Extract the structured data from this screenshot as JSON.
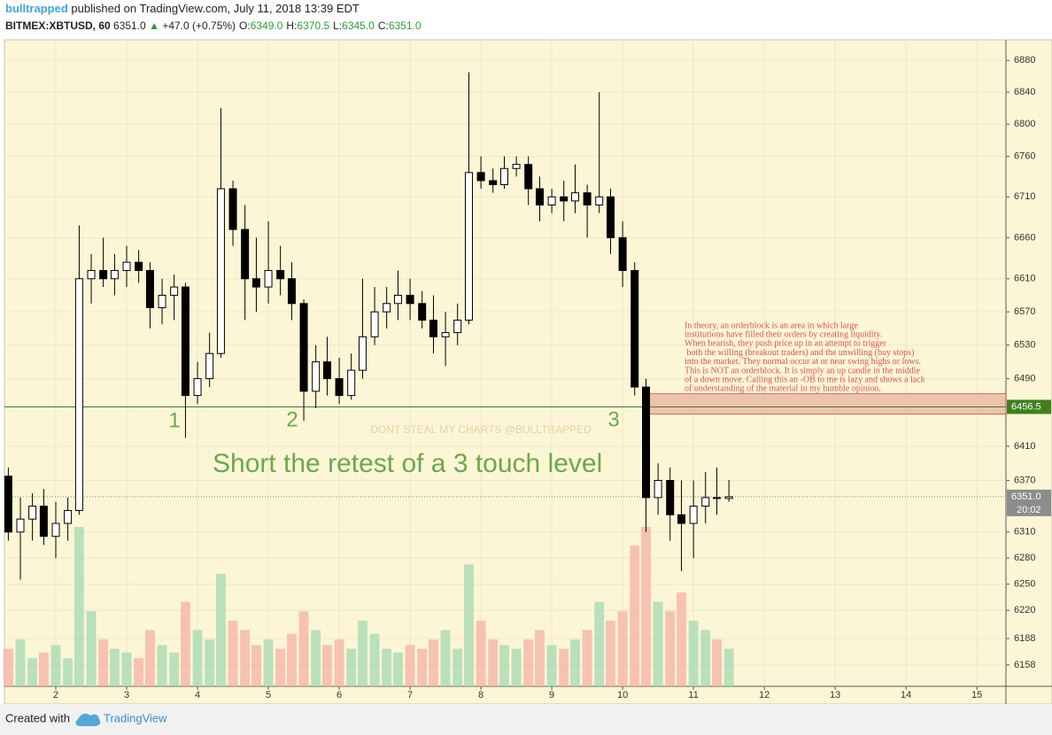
{
  "header": {
    "author": "bulltrapped",
    "published": "published on TradingView.com, July 11, 2018 13:39 EDT",
    "symbol": "BITMEX:XBTUSD, 60",
    "last": "6351.0",
    "arrow": "▲",
    "change": "+47.0 (+0.75%)",
    "ohlc": [
      {
        "label": "O:",
        "value": "6349.0"
      },
      {
        "label": "H:",
        "value": "6370.5"
      },
      {
        "label": "L:",
        "value": "6345.0"
      },
      {
        "label": "C:",
        "value": "6351.0"
      }
    ]
  },
  "chart_data": {
    "type": "candlestick",
    "log_scale": true,
    "grid": true,
    "up_color": "#ffffff",
    "down_color": "#000000",
    "volume_up_color": "#a9dbb5",
    "volume_down_color": "#f5b5a8",
    "xlim": [
      1.275,
      15.41
    ],
    "xticks": [
      2,
      3,
      4,
      5,
      6,
      7,
      8,
      9,
      10,
      11,
      12,
      13,
      14,
      15
    ],
    "ylim": [
      6134,
      6906
    ],
    "yticks": [
      6880,
      6840,
      6800,
      6760,
      6710,
      6660,
      6610,
      6570,
      6530,
      6490,
      6410,
      6370,
      6310,
      6280,
      6250,
      6220,
      6188,
      6158
    ],
    "x": [
      1.33,
      1.5,
      1.67,
      1.83,
      2,
      2.17,
      2.33,
      2.5,
      2.67,
      2.83,
      3,
      3.17,
      3.33,
      3.5,
      3.67,
      3.83,
      4,
      4.17,
      4.33,
      4.5,
      4.67,
      4.83,
      5,
      5.17,
      5.33,
      5.5,
      5.67,
      5.83,
      6,
      6.17,
      6.33,
      6.5,
      6.67,
      6.83,
      7,
      7.17,
      7.33,
      7.5,
      7.67,
      7.83,
      8,
      8.17,
      8.33,
      8.5,
      8.67,
      8.83,
      9,
      9.17,
      9.33,
      9.5,
      9.67,
      9.83,
      10,
      10.17,
      10.33,
      10.5,
      10.67,
      10.83,
      11,
      11.17,
      11.33,
      11.5
    ],
    "open": [
      6375,
      6310,
      6325,
      6340,
      6305,
      6320,
      6335,
      6610,
      6620,
      6610,
      6620,
      6630,
      6620,
      6575,
      6590,
      6600,
      6470,
      6490,
      6520,
      6720,
      6670,
      6610,
      6600,
      6620,
      6610,
      6580,
      6475,
      6510,
      6490,
      6470,
      6500,
      6540,
      6570,
      6580,
      6590,
      6580,
      6560,
      6540,
      6545,
      6560,
      6740,
      6730,
      6725,
      6745,
      6750,
      6720,
      6700,
      6710,
      6705,
      6715,
      6700,
      6710,
      6660,
      6620,
      6480,
      6350,
      6370,
      6330,
      6320,
      6340,
      6350,
      6349
    ],
    "high": [
      6385,
      6350,
      6355,
      6360,
      6345,
      6350,
      6675,
      6640,
      6660,
      6640,
      6650,
      6645,
      6630,
      6610,
      6615,
      6605,
      6510,
      6545,
      6820,
      6730,
      6700,
      6660,
      6680,
      6650,
      6630,
      6585,
      6530,
      6540,
      6515,
      6520,
      6610,
      6600,
      6600,
      6620,
      6610,
      6595,
      6590,
      6570,
      6580,
      6865,
      6760,
      6745,
      6760,
      6760,
      6760,
      6735,
      6720,
      6730,
      6750,
      6725,
      6840,
      6720,
      6680,
      6630,
      6490,
      6390,
      6385,
      6370,
      6370,
      6380,
      6385,
      6370.5
    ],
    "low": [
      6300,
      6255,
      6300,
      6295,
      6280,
      6300,
      6330,
      6580,
      6600,
      6590,
      6600,
      6605,
      6550,
      6555,
      6560,
      6420,
      6460,
      6480,
      6515,
      6650,
      6560,
      6570,
      6580,
      6590,
      6560,
      6440,
      6455,
      6470,
      6460,
      6465,
      6490,
      6530,
      6550,
      6560,
      6560,
      6550,
      6520,
      6505,
      6530,
      6555,
      6720,
      6715,
      6720,
      6735,
      6700,
      6680,
      6690,
      6680,
      6690,
      6660,
      6690,
      6640,
      6600,
      6470,
      6310,
      6330,
      6300,
      6265,
      6280,
      6320,
      6330,
      6345
    ],
    "close": [
      6310,
      6325,
      6340,
      6305,
      6320,
      6335,
      6610,
      6620,
      6610,
      6620,
      6630,
      6620,
      6575,
      6590,
      6600,
      6470,
      6490,
      6520,
      6720,
      6670,
      6610,
      6600,
      6620,
      6610,
      6580,
      6475,
      6510,
      6490,
      6470,
      6500,
      6540,
      6570,
      6580,
      6590,
      6580,
      6560,
      6540,
      6545,
      6560,
      6740,
      6730,
      6725,
      6745,
      6750,
      6720,
      6700,
      6710,
      6705,
      6715,
      6700,
      6710,
      6660,
      6620,
      6480,
      6350,
      6370,
      6330,
      6320,
      6340,
      6350,
      6349,
      6351
    ],
    "volume": [
      20,
      25,
      15,
      18,
      22,
      15,
      85,
      40,
      25,
      20,
      18,
      15,
      30,
      22,
      18,
      45,
      30,
      25,
      60,
      35,
      30,
      22,
      25,
      20,
      28,
      40,
      30,
      22,
      25,
      20,
      35,
      28,
      20,
      18,
      22,
      20,
      25,
      30,
      20,
      65,
      35,
      25,
      22,
      20,
      25,
      30,
      22,
      20,
      25,
      30,
      45,
      35,
      40,
      75,
      85,
      45,
      40,
      50,
      35,
      30,
      25,
      20
    ],
    "level": {
      "value": 6456.5,
      "color": "#3f7f1f"
    },
    "last_price": {
      "value": 6351,
      "label": "6351.0",
      "countdown": "20:02"
    },
    "zone": {
      "from": 10.28,
      "low": 6448,
      "high": 6472,
      "color": "#e8b8a0"
    },
    "touches": [
      "1",
      "2",
      "3"
    ],
    "headline": "Short the retest of a 3 touch level",
    "watermark": "DONT STEAL MY CHARTS @BULLTRAPPED",
    "note": [
      "In theory, an orderblock is an area in which large",
      "institutions have filled their orders by creating liquidity.",
      "When bearish, they push price up in an attempt to trigger",
      " both the willing (breakout traders) and the unwilling (buy stops)",
      "into the market. They normal occur at or near swing highs or lows.",
      "This is NOT an orderblock. It is simply an up candle in the middle",
      "of a down move. Calling this an -OB to me is lazy and shows a lack",
      "of understanding of the material in my humble opinion."
    ]
  },
  "footer": {
    "created": "Created with",
    "brand": "TradingView"
  }
}
